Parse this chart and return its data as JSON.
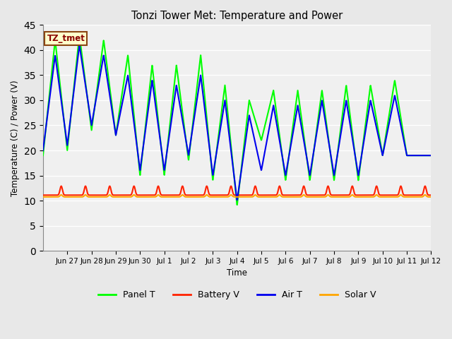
{
  "title": "Tonzi Tower Met: Temperature and Power",
  "xlabel": "Time",
  "ylabel": "Temperature (C) / Power (V)",
  "annotation": "TZ_tmet",
  "ylim": [
    0,
    45
  ],
  "yticks": [
    0,
    5,
    10,
    15,
    20,
    25,
    30,
    35,
    40,
    45
  ],
  "colors": {
    "panel_t": "#00FF00",
    "battery_v": "#FF2200",
    "air_t": "#0000EE",
    "solar_v": "#FFA500"
  },
  "line_widths": {
    "panel_t": 1.5,
    "battery_v": 1.5,
    "air_t": 1.5,
    "solar_v": 1.5
  },
  "background_color": "#E8E8E8",
  "plot_bg_color": "#F0F0F0",
  "grid_color": "#FFFFFF",
  "legend_labels": [
    "Panel T",
    "Battery V",
    "Air T",
    "Solar V"
  ],
  "tick_labels": [
    "Jun 27",
    "Jun 28",
    "Jun 29",
    "Jun 30",
    "Jul 1",
    "Jul 2",
    "Jul 3",
    "Jul 4",
    "Jul 5",
    "Jul 6",
    "Jul 7",
    "Jul 8",
    "Jul 9",
    "Jul 10",
    "Jul 11",
    "Jul 12"
  ],
  "panel_peaks": [
    42,
    43,
    42,
    39,
    37,
    37,
    39,
    33,
    30,
    32,
    32,
    32,
    33,
    33,
    34
  ],
  "panel_troughs": [
    19,
    20,
    24,
    23,
    15,
    15,
    18,
    14,
    9,
    22,
    14,
    14,
    14,
    14,
    19
  ],
  "air_peaks": [
    39,
    41,
    39,
    35,
    34,
    33,
    35,
    30,
    27,
    29,
    29,
    30,
    30,
    30,
    31
  ],
  "air_troughs": [
    20,
    21,
    25,
    23,
    16,
    16,
    19,
    15,
    10,
    16,
    15,
    15,
    15,
    15,
    19
  ]
}
